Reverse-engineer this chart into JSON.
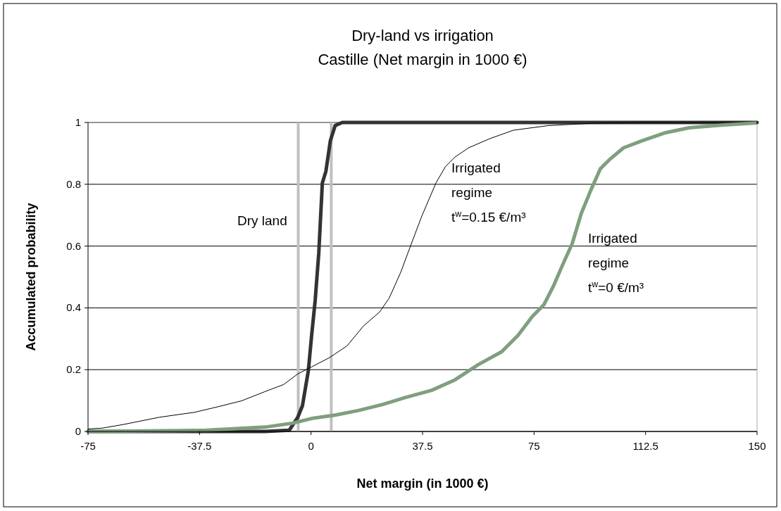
{
  "chart_data": {
    "type": "line",
    "title": "Dry-land vs irrigation",
    "subtitle": "Castille (Net margin in 1000 €)",
    "xlabel": "Net margin (in 1000 €)",
    "ylabel": "Accumulated probability",
    "xlim": [
      -75,
      150
    ],
    "xticks": [
      -75,
      -37.5,
      0,
      37.5,
      75,
      112.5,
      150
    ],
    "ylim": [
      0,
      1
    ],
    "yticks": [
      0,
      0.2,
      0.4,
      0.6,
      0.8,
      1
    ],
    "grid": "y",
    "legend": false,
    "marker": "none",
    "line_style": "solid",
    "series": [
      {
        "name": "Dry land",
        "color": "#333333",
        "x": [
          -75,
          -15.5,
          -7.3,
          -4.5,
          -2.9,
          -0.9,
          0.2,
          1.4,
          2.6,
          3.8,
          5.0,
          6.5,
          8.1,
          10.5,
          150
        ],
        "values": [
          0,
          0,
          0.004,
          0.045,
          0.083,
          0.197,
          0.311,
          0.425,
          0.577,
          0.804,
          0.842,
          0.941,
          0.99,
          1,
          1
        ]
      },
      {
        "name": "Irrigated regime t$^{w}$=0.15 €/m³",
        "color": "#000000",
        "x": [
          -75,
          -70,
          -62.9,
          -51,
          -39.2,
          -31.3,
          -23.4,
          -15.5,
          -9.2,
          -4.5,
          0.2,
          6.2,
          12.1,
          17.6,
          23.1,
          26.3,
          30.2,
          33.4,
          37.3,
          42.0,
          45.2,
          48.4,
          53.0,
          60.2,
          68.1,
          79.9,
          95.7,
          111.4,
          150
        ],
        "values": [
          0.008,
          0.011,
          0.023,
          0.046,
          0.062,
          0.08,
          0.099,
          0.129,
          0.152,
          0.186,
          0.209,
          0.239,
          0.277,
          0.341,
          0.387,
          0.432,
          0.516,
          0.599,
          0.698,
          0.804,
          0.857,
          0.888,
          0.918,
          0.948,
          0.975,
          0.99,
          0.998,
          1,
          1
        ]
      },
      {
        "name": "Irrigated regime t$^{w}$=0 €/m³",
        "color": "#7f9f7f",
        "x": [
          -75,
          -35.3,
          -15.5,
          -6.1,
          0.2,
          8.1,
          16,
          23.9,
          31.8,
          40.5,
          48.4,
          56.2,
          64.1,
          69.6,
          74.4,
          78.3,
          81.5,
          84.6,
          87.8,
          90.9,
          94.1,
          97.3,
          100.4,
          105.1,
          111.4,
          119.3,
          127.2,
          139.0,
          149.3
        ],
        "values": [
          0,
          0.004,
          0.014,
          0.027,
          0.042,
          0.053,
          0.068,
          0.087,
          0.11,
          0.133,
          0.167,
          0.216,
          0.258,
          0.311,
          0.372,
          0.41,
          0.47,
          0.539,
          0.607,
          0.706,
          0.781,
          0.85,
          0.88,
          0.918,
          0.941,
          0.967,
          0.983,
          0.992,
          0.998
        ]
      }
    ],
    "ref_lines": [
      {
        "axis": "x",
        "value": -4.3,
        "color": "#c0c0c0"
      },
      {
        "axis": "x",
        "value": 6.8,
        "color": "#c0c0c0"
      }
    ]
  }
}
